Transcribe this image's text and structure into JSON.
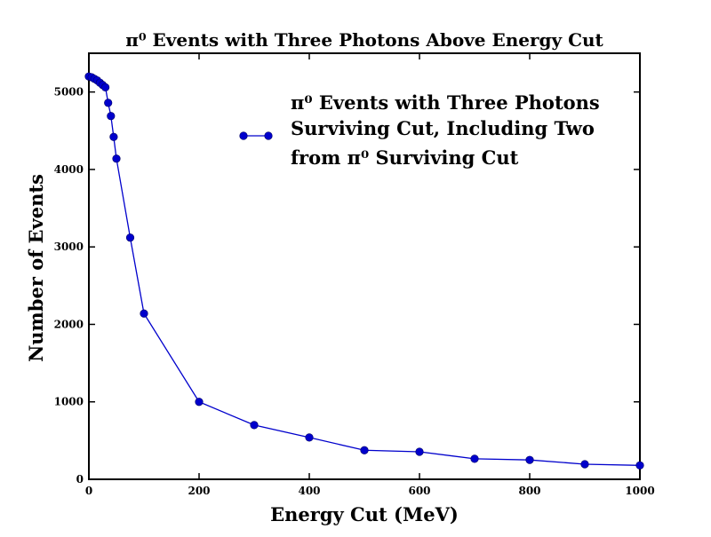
{
  "chart_data": {
    "type": "line",
    "title": "π⁰  Events with Three Photons Above Energy Cut",
    "xlabel": "Energy Cut (MeV)",
    "ylabel": "Number of Events",
    "xlim": [
      0,
      1000
    ],
    "ylim": [
      0,
      5500
    ],
    "x_ticks": [
      0,
      200,
      400,
      600,
      800,
      1000
    ],
    "y_ticks": [
      0,
      1000,
      2000,
      3000,
      4000,
      5000
    ],
    "grid": false,
    "legend_position": "top-right",
    "series": [
      {
        "name_lines": [
          "π⁰  Events with Three Photons",
          "Surviving Cut, Including Two",
          "from π⁰  Surviving Cut"
        ],
        "color": "#0000cc",
        "marker": "circle",
        "x": [
          0,
          5,
          10,
          15,
          20,
          25,
          30,
          35,
          40,
          45,
          50,
          75,
          100,
          200,
          300,
          400,
          500,
          600,
          700,
          800,
          900,
          1000
        ],
        "y": [
          5200,
          5190,
          5170,
          5150,
          5120,
          5090,
          5060,
          4860,
          4690,
          4420,
          4140,
          3120,
          2140,
          1000,
          700,
          540,
          375,
          355,
          265,
          250,
          195,
          180
        ]
      }
    ]
  }
}
